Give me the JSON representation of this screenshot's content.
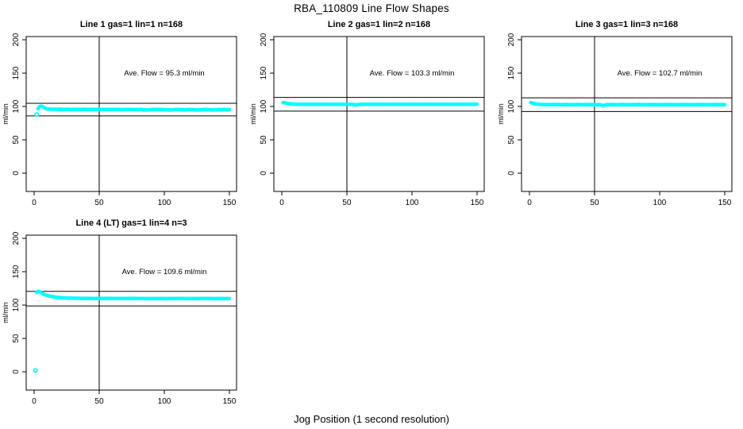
{
  "page_title": "RBA_110809  Line Flow Shapes",
  "x_axis_label": "Jog Position (1 second resolution)",
  "colors": {
    "points": "#00ffff",
    "axis": "#000000",
    "background": "#ffffff",
    "text": "#000000"
  },
  "chart_data": [
    {
      "type": "scatter",
      "title": "Line 1 gas=1 lin=1 n=168",
      "ylabel": "ml/min",
      "annotation": "Ave. Flow =  95.3  ml/min",
      "annotation_xy": [
        100,
        150
      ],
      "ave_flow_ml_min": 95.3,
      "n": 168,
      "xlim": [
        -6.1,
        155.5
      ],
      "ylim": [
        -27.4,
        204.8
      ],
      "xticks": [
        0,
        50,
        100,
        150
      ],
      "yticks": [
        0,
        50,
        100,
        150,
        200
      ],
      "vline_x": 50,
      "hlines_y": [
        104.8,
        85.8
      ],
      "outliers": [
        [
          2,
          88
        ]
      ],
      "band": [
        [
          3,
          96.5
        ],
        [
          4,
          99.6
        ],
        [
          5,
          100.4
        ],
        [
          6,
          100.1
        ],
        [
          7,
          99.0
        ],
        [
          8,
          97.8
        ],
        [
          9,
          96.9
        ],
        [
          10,
          96.3
        ],
        [
          12,
          96.0
        ],
        [
          14,
          95.8
        ],
        [
          16,
          95.9
        ],
        [
          18,
          95.7
        ],
        [
          20,
          95.8
        ],
        [
          22,
          95.6
        ],
        [
          24,
          95.7
        ],
        [
          26,
          95.8
        ],
        [
          28,
          95.6
        ],
        [
          30,
          95.7
        ],
        [
          32,
          95.5
        ],
        [
          34,
          95.7
        ],
        [
          36,
          95.6
        ],
        [
          38,
          95.8
        ],
        [
          40,
          95.6
        ],
        [
          42,
          95.7
        ],
        [
          44,
          95.5
        ],
        [
          46,
          95.7
        ],
        [
          48,
          95.6
        ],
        [
          50,
          95.7
        ],
        [
          52,
          95.5
        ],
        [
          54,
          95.6
        ],
        [
          56,
          95.7
        ],
        [
          58,
          95.5
        ],
        [
          60,
          95.6
        ],
        [
          62,
          95.7
        ],
        [
          64,
          95.5
        ],
        [
          66,
          95.6
        ],
        [
          68,
          95.4
        ],
        [
          70,
          95.6
        ],
        [
          72,
          95.5
        ],
        [
          74,
          95.7
        ],
        [
          76,
          95.4
        ],
        [
          78,
          95.6
        ],
        [
          80,
          95.3
        ],
        [
          82,
          95.5
        ],
        [
          84,
          95.1
        ],
        [
          86,
          94.8
        ],
        [
          88,
          95.0
        ],
        [
          90,
          95.4
        ],
        [
          92,
          95.7
        ],
        [
          94,
          95.5
        ],
        [
          96,
          95.6
        ],
        [
          98,
          95.4
        ],
        [
          100,
          95.2
        ],
        [
          102,
          94.9
        ],
        [
          104,
          94.7
        ],
        [
          106,
          95.0
        ],
        [
          108,
          95.3
        ],
        [
          110,
          95.6
        ],
        [
          112,
          95.4
        ],
        [
          114,
          95.1
        ],
        [
          116,
          94.9
        ],
        [
          118,
          95.2
        ],
        [
          120,
          95.5
        ],
        [
          122,
          95.3
        ],
        [
          124,
          95.0
        ],
        [
          126,
          94.8
        ],
        [
          128,
          95.1
        ],
        [
          130,
          95.4
        ],
        [
          132,
          95.6
        ],
        [
          134,
          95.3
        ],
        [
          136,
          95.0
        ],
        [
          138,
          94.8
        ],
        [
          140,
          95.1
        ],
        [
          142,
          95.4
        ],
        [
          144,
          95.2
        ],
        [
          146,
          95.5
        ],
        [
          148,
          95.3
        ],
        [
          150,
          95.4
        ]
      ]
    },
    {
      "type": "scatter",
      "title": "Line 2 gas=1 lin=2 n=168",
      "ylabel": "ml/min",
      "annotation": "Ave. Flow =  103.3  ml/min",
      "annotation_xy": [
        100,
        150
      ],
      "ave_flow_ml_min": 103.3,
      "n": 168,
      "xlim": [
        -6.1,
        155.5
      ],
      "ylim": [
        -27.4,
        204.8
      ],
      "xticks": [
        0,
        50,
        100,
        150
      ],
      "yticks": [
        0,
        50,
        100,
        150,
        200
      ],
      "vline_x": 50,
      "hlines_y": [
        113.6,
        93.0
      ],
      "outliers": [],
      "band": [
        [
          1,
          105.7
        ],
        [
          2,
          105.9
        ],
        [
          3,
          105.3
        ],
        [
          4,
          104.8
        ],
        [
          5,
          104.4
        ],
        [
          6,
          104.1
        ],
        [
          8,
          103.7
        ],
        [
          10,
          103.5
        ],
        [
          12,
          103.4
        ],
        [
          14,
          103.5
        ],
        [
          16,
          103.3
        ],
        [
          18,
          103.5
        ],
        [
          20,
          103.4
        ],
        [
          22,
          103.5
        ],
        [
          24,
          103.3
        ],
        [
          26,
          103.4
        ],
        [
          28,
          103.5
        ],
        [
          30,
          103.3
        ],
        [
          32,
          103.4
        ],
        [
          34,
          103.2
        ],
        [
          36,
          103.4
        ],
        [
          38,
          103.5
        ],
        [
          40,
          103.3
        ],
        [
          42,
          103.4
        ],
        [
          44,
          103.2
        ],
        [
          46,
          103.5
        ],
        [
          48,
          103.3
        ],
        [
          50,
          103.4
        ],
        [
          52,
          103.2
        ],
        [
          54,
          103.3
        ],
        [
          56,
          102.6
        ],
        [
          57,
          102.0
        ],
        [
          58,
          102.9
        ],
        [
          60,
          103.4
        ],
        [
          62,
          103.3
        ],
        [
          64,
          103.5
        ],
        [
          66,
          103.2
        ],
        [
          68,
          103.4
        ],
        [
          70,
          103.3
        ],
        [
          72,
          103.5
        ],
        [
          74,
          103.2
        ],
        [
          76,
          103.4
        ],
        [
          78,
          103.3
        ],
        [
          80,
          103.4
        ],
        [
          82,
          103.2
        ],
        [
          84,
          103.5
        ],
        [
          86,
          103.3
        ],
        [
          88,
          103.4
        ],
        [
          90,
          103.2
        ],
        [
          92,
          103.4
        ],
        [
          94,
          103.3
        ],
        [
          96,
          103.5
        ],
        [
          98,
          103.2
        ],
        [
          100,
          103.4
        ],
        [
          102,
          103.3
        ],
        [
          104,
          103.4
        ],
        [
          106,
          103.2
        ],
        [
          108,
          103.5
        ],
        [
          110,
          103.3
        ],
        [
          112,
          103.4
        ],
        [
          114,
          103.2
        ],
        [
          116,
          103.4
        ],
        [
          118,
          103.3
        ],
        [
          120,
          103.5
        ],
        [
          122,
          103.2
        ],
        [
          124,
          103.4
        ],
        [
          126,
          103.3
        ],
        [
          128,
          103.4
        ],
        [
          130,
          103.2
        ],
        [
          132,
          103.5
        ],
        [
          134,
          103.3
        ],
        [
          136,
          103.4
        ],
        [
          138,
          103.2
        ],
        [
          140,
          103.4
        ],
        [
          142,
          103.3
        ],
        [
          144,
          103.5
        ],
        [
          146,
          103.2
        ],
        [
          148,
          103.4
        ],
        [
          150,
          103.3
        ]
      ]
    },
    {
      "type": "scatter",
      "title": "Line 3 gas=1 lin=3 n=168",
      "ylabel": "ml/min",
      "annotation": "Ave. Flow =  102.7  ml/min",
      "annotation_xy": [
        100,
        150
      ],
      "ave_flow_ml_min": 102.7,
      "n": 168,
      "xlim": [
        -6.1,
        155.5
      ],
      "ylim": [
        -27.4,
        204.8
      ],
      "xticks": [
        0,
        50,
        100,
        150
      ],
      "yticks": [
        0,
        50,
        100,
        150,
        200
      ],
      "vline_x": 50,
      "hlines_y": [
        113.0,
        92.4
      ],
      "outliers": [],
      "band": [
        [
          1,
          105.8
        ],
        [
          2,
          105.2
        ],
        [
          3,
          104.6
        ],
        [
          4,
          104.2
        ],
        [
          5,
          103.8
        ],
        [
          6,
          103.5
        ],
        [
          8,
          103.2
        ],
        [
          10,
          103.0
        ],
        [
          12,
          102.9
        ],
        [
          14,
          103.0
        ],
        [
          16,
          102.8
        ],
        [
          18,
          103.0
        ],
        [
          20,
          102.9
        ],
        [
          22,
          103.0
        ],
        [
          24,
          102.8
        ],
        [
          26,
          102.9
        ],
        [
          28,
          103.0
        ],
        [
          30,
          102.8
        ],
        [
          32,
          102.9
        ],
        [
          34,
          102.7
        ],
        [
          36,
          102.9
        ],
        [
          38,
          103.0
        ],
        [
          40,
          102.8
        ],
        [
          42,
          102.9
        ],
        [
          44,
          102.7
        ],
        [
          46,
          103.0
        ],
        [
          48,
          102.8
        ],
        [
          50,
          102.9
        ],
        [
          52,
          102.7
        ],
        [
          54,
          102.8
        ],
        [
          56,
          101.8
        ],
        [
          57,
          101.0
        ],
        [
          58,
          102.2
        ],
        [
          60,
          102.9
        ],
        [
          62,
          102.8
        ],
        [
          64,
          103.0
        ],
        [
          66,
          102.7
        ],
        [
          68,
          102.9
        ],
        [
          70,
          102.8
        ],
        [
          72,
          103.0
        ],
        [
          74,
          102.7
        ],
        [
          76,
          102.9
        ],
        [
          78,
          102.8
        ],
        [
          80,
          102.9
        ],
        [
          82,
          102.7
        ],
        [
          84,
          103.0
        ],
        [
          86,
          102.8
        ],
        [
          88,
          102.9
        ],
        [
          90,
          102.7
        ],
        [
          92,
          102.9
        ],
        [
          94,
          102.8
        ],
        [
          96,
          103.0
        ],
        [
          98,
          102.7
        ],
        [
          100,
          102.9
        ],
        [
          102,
          102.8
        ],
        [
          104,
          102.9
        ],
        [
          106,
          102.7
        ],
        [
          108,
          103.0
        ],
        [
          110,
          102.8
        ],
        [
          112,
          102.9
        ],
        [
          114,
          102.7
        ],
        [
          116,
          102.9
        ],
        [
          118,
          102.8
        ],
        [
          120,
          103.0
        ],
        [
          122,
          102.7
        ],
        [
          124,
          102.9
        ],
        [
          126,
          102.8
        ],
        [
          128,
          102.9
        ],
        [
          130,
          102.7
        ],
        [
          132,
          103.0
        ],
        [
          134,
          102.8
        ],
        [
          136,
          102.9
        ],
        [
          138,
          102.7
        ],
        [
          140,
          102.9
        ],
        [
          142,
          102.8
        ],
        [
          144,
          103.0
        ],
        [
          146,
          102.7
        ],
        [
          148,
          102.9
        ],
        [
          150,
          102.8
        ]
      ]
    },
    {
      "type": "scatter",
      "title": "Line 4 (LT) gas=1 lin=4 n=3",
      "ylabel": "ml/min",
      "annotation": "Ave. Flow =  109.6  ml/min",
      "annotation_xy": [
        100,
        150
      ],
      "ave_flow_ml_min": 109.6,
      "n": 3,
      "xlim": [
        -6.1,
        155.5
      ],
      "ylim": [
        -27.4,
        204.8
      ],
      "xticks": [
        0,
        50,
        100,
        150
      ],
      "yticks": [
        0,
        50,
        100,
        150,
        200
      ],
      "vline_x": 50,
      "hlines_y": [
        120.6,
        98.6
      ],
      "outliers": [
        [
          1,
          2
        ]
      ],
      "band": [
        [
          2,
          119.0
        ],
        [
          3,
          120.8
        ],
        [
          4,
          120.4
        ],
        [
          5,
          119.2
        ],
        [
          6,
          117.8
        ],
        [
          7,
          116.6
        ],
        [
          8,
          115.7
        ],
        [
          9,
          115.0
        ],
        [
          10,
          114.4
        ],
        [
          12,
          113.5
        ],
        [
          14,
          112.7
        ],
        [
          16,
          112.1
        ],
        [
          18,
          111.6
        ],
        [
          20,
          111.2
        ],
        [
          22,
          110.9
        ],
        [
          24,
          110.7
        ],
        [
          26,
          110.5
        ],
        [
          28,
          110.4
        ],
        [
          30,
          110.3
        ],
        [
          34,
          110.1
        ],
        [
          38,
          110.0
        ],
        [
          42,
          110.0
        ],
        [
          46,
          109.9
        ],
        [
          50,
          110.0
        ],
        [
          54,
          109.9
        ],
        [
          58,
          110.0
        ],
        [
          62,
          109.8
        ],
        [
          66,
          109.9
        ],
        [
          70,
          109.8
        ],
        [
          74,
          110.0
        ],
        [
          78,
          109.8
        ],
        [
          82,
          109.9
        ],
        [
          86,
          109.7
        ],
        [
          90,
          109.8
        ],
        [
          94,
          109.6
        ],
        [
          98,
          109.8
        ],
        [
          102,
          109.7
        ],
        [
          106,
          109.9
        ],
        [
          110,
          109.8
        ],
        [
          114,
          109.9
        ],
        [
          118,
          109.7
        ],
        [
          122,
          109.8
        ],
        [
          126,
          109.7
        ],
        [
          130,
          109.9
        ],
        [
          134,
          109.8
        ],
        [
          138,
          109.7
        ],
        [
          142,
          109.8
        ],
        [
          146,
          109.7
        ],
        [
          150,
          109.8
        ]
      ]
    }
  ]
}
